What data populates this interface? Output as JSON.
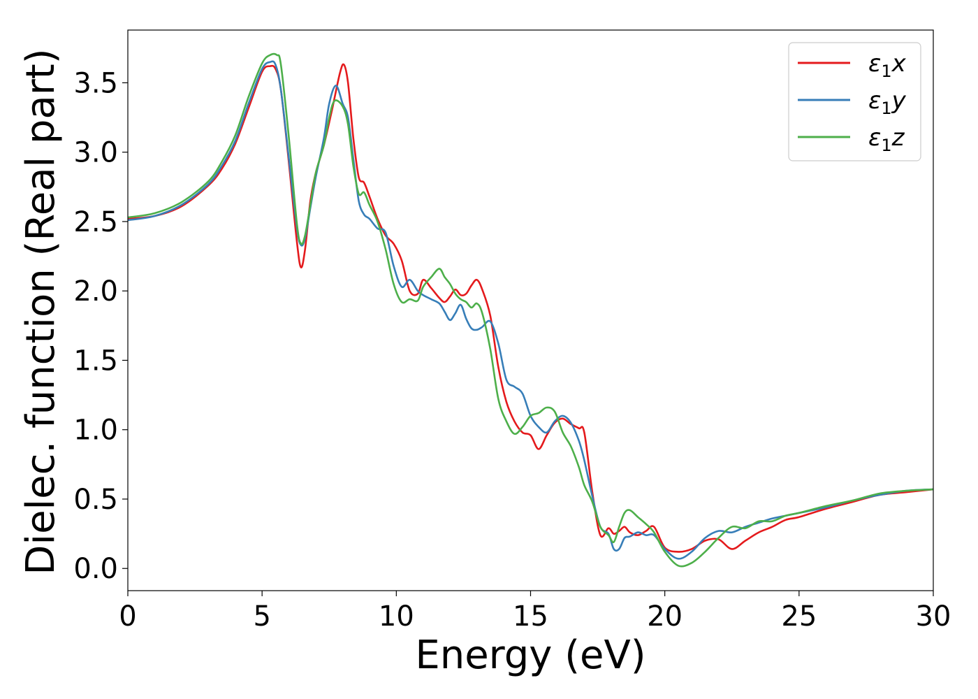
{
  "chart_data": {
    "type": "line",
    "xlabel": "Energy (eV)",
    "ylabel": "Dielec. function (Real part)",
    "xlim": [
      0,
      30
    ],
    "ylim": [
      -0.16,
      3.88
    ],
    "xticks": [
      0,
      5,
      10,
      15,
      20,
      25,
      30
    ],
    "xtick_labels": [
      "0",
      "5",
      "10",
      "15",
      "20",
      "25",
      "30"
    ],
    "yticks": [
      0.0,
      0.5,
      1.0,
      1.5,
      2.0,
      2.5,
      3.0,
      3.5
    ],
    "ytick_labels": [
      "0.0",
      "0.5",
      "1.0",
      "1.5",
      "2.0",
      "2.5",
      "3.0",
      "3.5"
    ],
    "grid": false,
    "legend_position": "top-right",
    "series": [
      {
        "name": "ε₁x",
        "legend_main": "ε",
        "legend_sub": "1",
        "legend_suffix": "x",
        "color": "#e41a1c",
        "x": [
          0,
          1,
          2,
          3,
          3.5,
          4,
          4.5,
          5,
          5.3,
          5.5,
          5.7,
          6.0,
          6.3,
          6.45,
          6.6,
          6.8,
          7.0,
          7.3,
          7.6,
          7.9,
          8.05,
          8.2,
          8.4,
          8.6,
          8.8,
          9.0,
          9.3,
          9.6,
          9.9,
          10.2,
          10.5,
          10.8,
          11.0,
          11.3,
          11.6,
          11.8,
          12.0,
          12.2,
          12.4,
          12.6,
          12.8,
          13.0,
          13.2,
          13.5,
          13.8,
          14.1,
          14.4,
          14.7,
          15.0,
          15.3,
          15.6,
          15.9,
          16.2,
          16.5,
          16.8,
          17.0,
          17.3,
          17.6,
          17.9,
          18.1,
          18.3,
          18.5,
          18.7,
          19.0,
          19.3,
          19.6,
          20.0,
          20.5,
          21.0,
          21.5,
          22.0,
          22.5,
          23.0,
          23.5,
          24.0,
          24.5,
          25.0,
          26.0,
          27.0,
          28.0,
          29.0,
          30.0
        ],
        "y": [
          2.52,
          2.54,
          2.61,
          2.76,
          2.88,
          3.06,
          3.32,
          3.58,
          3.62,
          3.6,
          3.45,
          2.92,
          2.35,
          2.17,
          2.3,
          2.65,
          2.85,
          3.05,
          3.3,
          3.57,
          3.63,
          3.5,
          3.1,
          2.82,
          2.78,
          2.68,
          2.52,
          2.4,
          2.34,
          2.22,
          2.0,
          1.98,
          2.08,
          2.02,
          1.95,
          1.92,
          1.96,
          2.01,
          1.97,
          1.98,
          2.04,
          2.08,
          2.01,
          1.82,
          1.45,
          1.2,
          1.06,
          0.98,
          0.96,
          0.86,
          0.96,
          1.05,
          1.08,
          1.04,
          1.01,
          0.98,
          0.55,
          0.24,
          0.29,
          0.25,
          0.27,
          0.3,
          0.26,
          0.24,
          0.27,
          0.3,
          0.15,
          0.12,
          0.14,
          0.2,
          0.21,
          0.14,
          0.2,
          0.26,
          0.3,
          0.35,
          0.37,
          0.43,
          0.48,
          0.53,
          0.55,
          0.57
        ]
      },
      {
        "name": "ε₁y",
        "legend_main": "ε",
        "legend_sub": "1",
        "legend_suffix": "y",
        "color": "#377eb8",
        "x": [
          0,
          1,
          2,
          3,
          3.5,
          4,
          4.5,
          5,
          5.3,
          5.5,
          5.7,
          6.0,
          6.3,
          6.45,
          6.6,
          6.8,
          7.0,
          7.3,
          7.5,
          7.75,
          8.0,
          8.2,
          8.4,
          8.6,
          8.8,
          9.0,
          9.3,
          9.6,
          9.9,
          10.2,
          10.5,
          10.8,
          11.0,
          11.3,
          11.6,
          11.8,
          12.0,
          12.2,
          12.4,
          12.6,
          12.8,
          13.0,
          13.2,
          13.5,
          13.8,
          14.1,
          14.4,
          14.7,
          15.0,
          15.3,
          15.6,
          15.9,
          16.2,
          16.5,
          16.8,
          17.0,
          17.3,
          17.6,
          17.9,
          18.1,
          18.3,
          18.5,
          18.7,
          19.0,
          19.3,
          19.6,
          20.0,
          20.5,
          21.0,
          21.5,
          22.0,
          22.5,
          23.0,
          23.5,
          24.0,
          24.5,
          25.0,
          26.0,
          27.0,
          28.0,
          29.0,
          30.0
        ],
        "y": [
          2.51,
          2.54,
          2.62,
          2.77,
          2.9,
          3.08,
          3.35,
          3.6,
          3.65,
          3.63,
          3.45,
          2.95,
          2.45,
          2.33,
          2.38,
          2.6,
          2.82,
          3.1,
          3.35,
          3.48,
          3.35,
          3.25,
          2.95,
          2.65,
          2.55,
          2.52,
          2.45,
          2.42,
          2.18,
          2.03,
          2.08,
          2.0,
          1.97,
          1.94,
          1.91,
          1.85,
          1.79,
          1.84,
          1.9,
          1.8,
          1.73,
          1.72,
          1.74,
          1.78,
          1.62,
          1.36,
          1.31,
          1.26,
          1.1,
          1.02,
          0.98,
          1.06,
          1.1,
          1.05,
          0.92,
          0.78,
          0.52,
          0.3,
          0.25,
          0.14,
          0.14,
          0.22,
          0.23,
          0.26,
          0.24,
          0.24,
          0.14,
          0.07,
          0.12,
          0.22,
          0.27,
          0.26,
          0.3,
          0.33,
          0.36,
          0.38,
          0.4,
          0.44,
          0.49,
          0.53,
          0.56,
          0.57
        ]
      },
      {
        "name": "ε₁z",
        "legend_main": "ε",
        "legend_sub": "1",
        "legend_suffix": "z",
        "color": "#4daf4a",
        "x": [
          0,
          1,
          2,
          3,
          3.5,
          4,
          4.5,
          5,
          5.3,
          5.55,
          5.7,
          6.0,
          6.3,
          6.45,
          6.6,
          6.8,
          7.0,
          7.3,
          7.5,
          7.7,
          8.0,
          8.2,
          8.4,
          8.6,
          8.8,
          9.0,
          9.3,
          9.6,
          9.9,
          10.2,
          10.5,
          10.8,
          11.0,
          11.3,
          11.6,
          11.8,
          12.0,
          12.2,
          12.4,
          12.6,
          12.8,
          13.0,
          13.2,
          13.5,
          13.8,
          14.1,
          14.4,
          14.7,
          15.0,
          15.3,
          15.6,
          15.9,
          16.2,
          16.5,
          16.8,
          17.0,
          17.3,
          17.6,
          17.9,
          18.1,
          18.3,
          18.5,
          18.7,
          19.0,
          19.3,
          19.6,
          20.0,
          20.5,
          21.0,
          21.5,
          22.0,
          22.5,
          23.0,
          23.5,
          24.0,
          24.5,
          25.0,
          26.0,
          27.0,
          28.0,
          29.0,
          30.0
        ],
        "y": [
          2.53,
          2.56,
          2.64,
          2.79,
          2.93,
          3.12,
          3.4,
          3.64,
          3.7,
          3.7,
          3.63,
          3.1,
          2.48,
          2.34,
          2.4,
          2.62,
          2.85,
          3.05,
          3.25,
          3.37,
          3.33,
          3.2,
          2.9,
          2.7,
          2.71,
          2.62,
          2.5,
          2.3,
          2.05,
          1.92,
          1.94,
          1.93,
          2.03,
          2.1,
          2.16,
          2.1,
          2.05,
          1.98,
          1.94,
          1.92,
          1.88,
          1.91,
          1.84,
          1.58,
          1.22,
          1.06,
          0.97,
          1.02,
          1.1,
          1.12,
          1.16,
          1.13,
          0.98,
          0.88,
          0.73,
          0.6,
          0.48,
          0.3,
          0.24,
          0.19,
          0.3,
          0.4,
          0.42,
          0.37,
          0.32,
          0.26,
          0.12,
          0.02,
          0.04,
          0.12,
          0.22,
          0.3,
          0.29,
          0.34,
          0.34,
          0.38,
          0.4,
          0.45,
          0.49,
          0.54,
          0.56,
          0.57
        ]
      }
    ]
  }
}
